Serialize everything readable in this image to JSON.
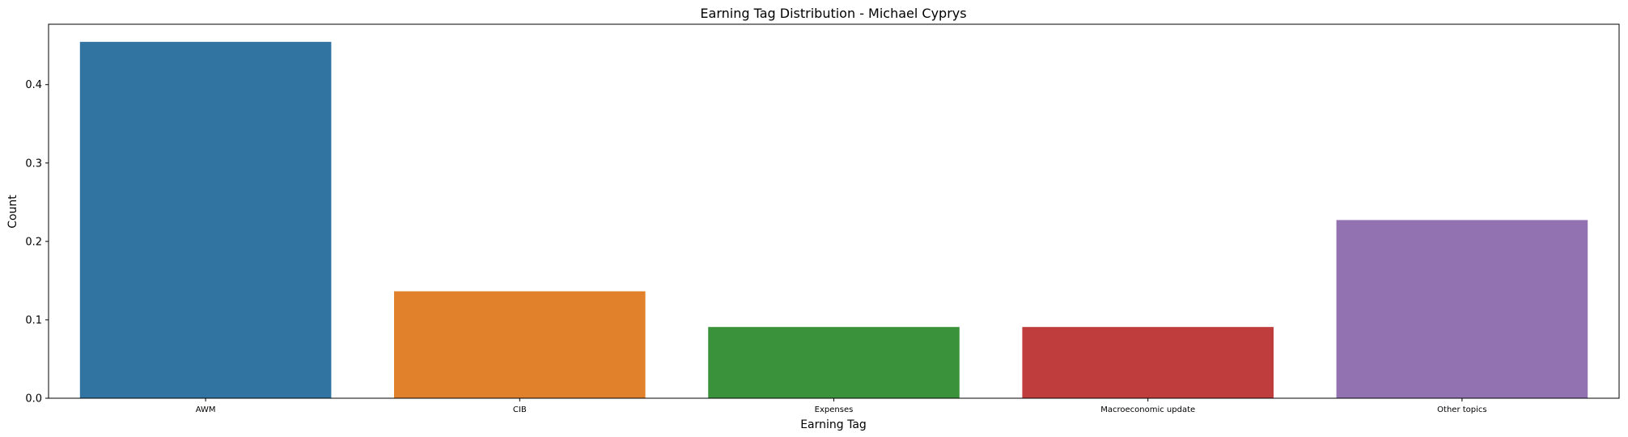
{
  "chart_data": {
    "type": "bar",
    "title": "Earning Tag Distribution - Michael Cyprys",
    "xlabel": "Earning Tag",
    "ylabel": "Count",
    "categories": [
      "AWM",
      "CIB",
      "Expenses",
      "Macroeconomic update",
      "Other topics"
    ],
    "values": [
      0.4545,
      0.1364,
      0.0909,
      0.0909,
      0.2273
    ],
    "colors": [
      "#3274a1",
      "#e1812c",
      "#3a923a",
      "#c03d3e",
      "#9372b2"
    ],
    "ylim": [
      0,
      0.477
    ],
    "yticks": [
      0.0,
      0.1,
      0.2,
      0.3,
      0.4
    ],
    "ytick_labels": [
      "0.0",
      "0.1",
      "0.2",
      "0.3",
      "0.4"
    ],
    "grid": false,
    "legend": "none"
  }
}
